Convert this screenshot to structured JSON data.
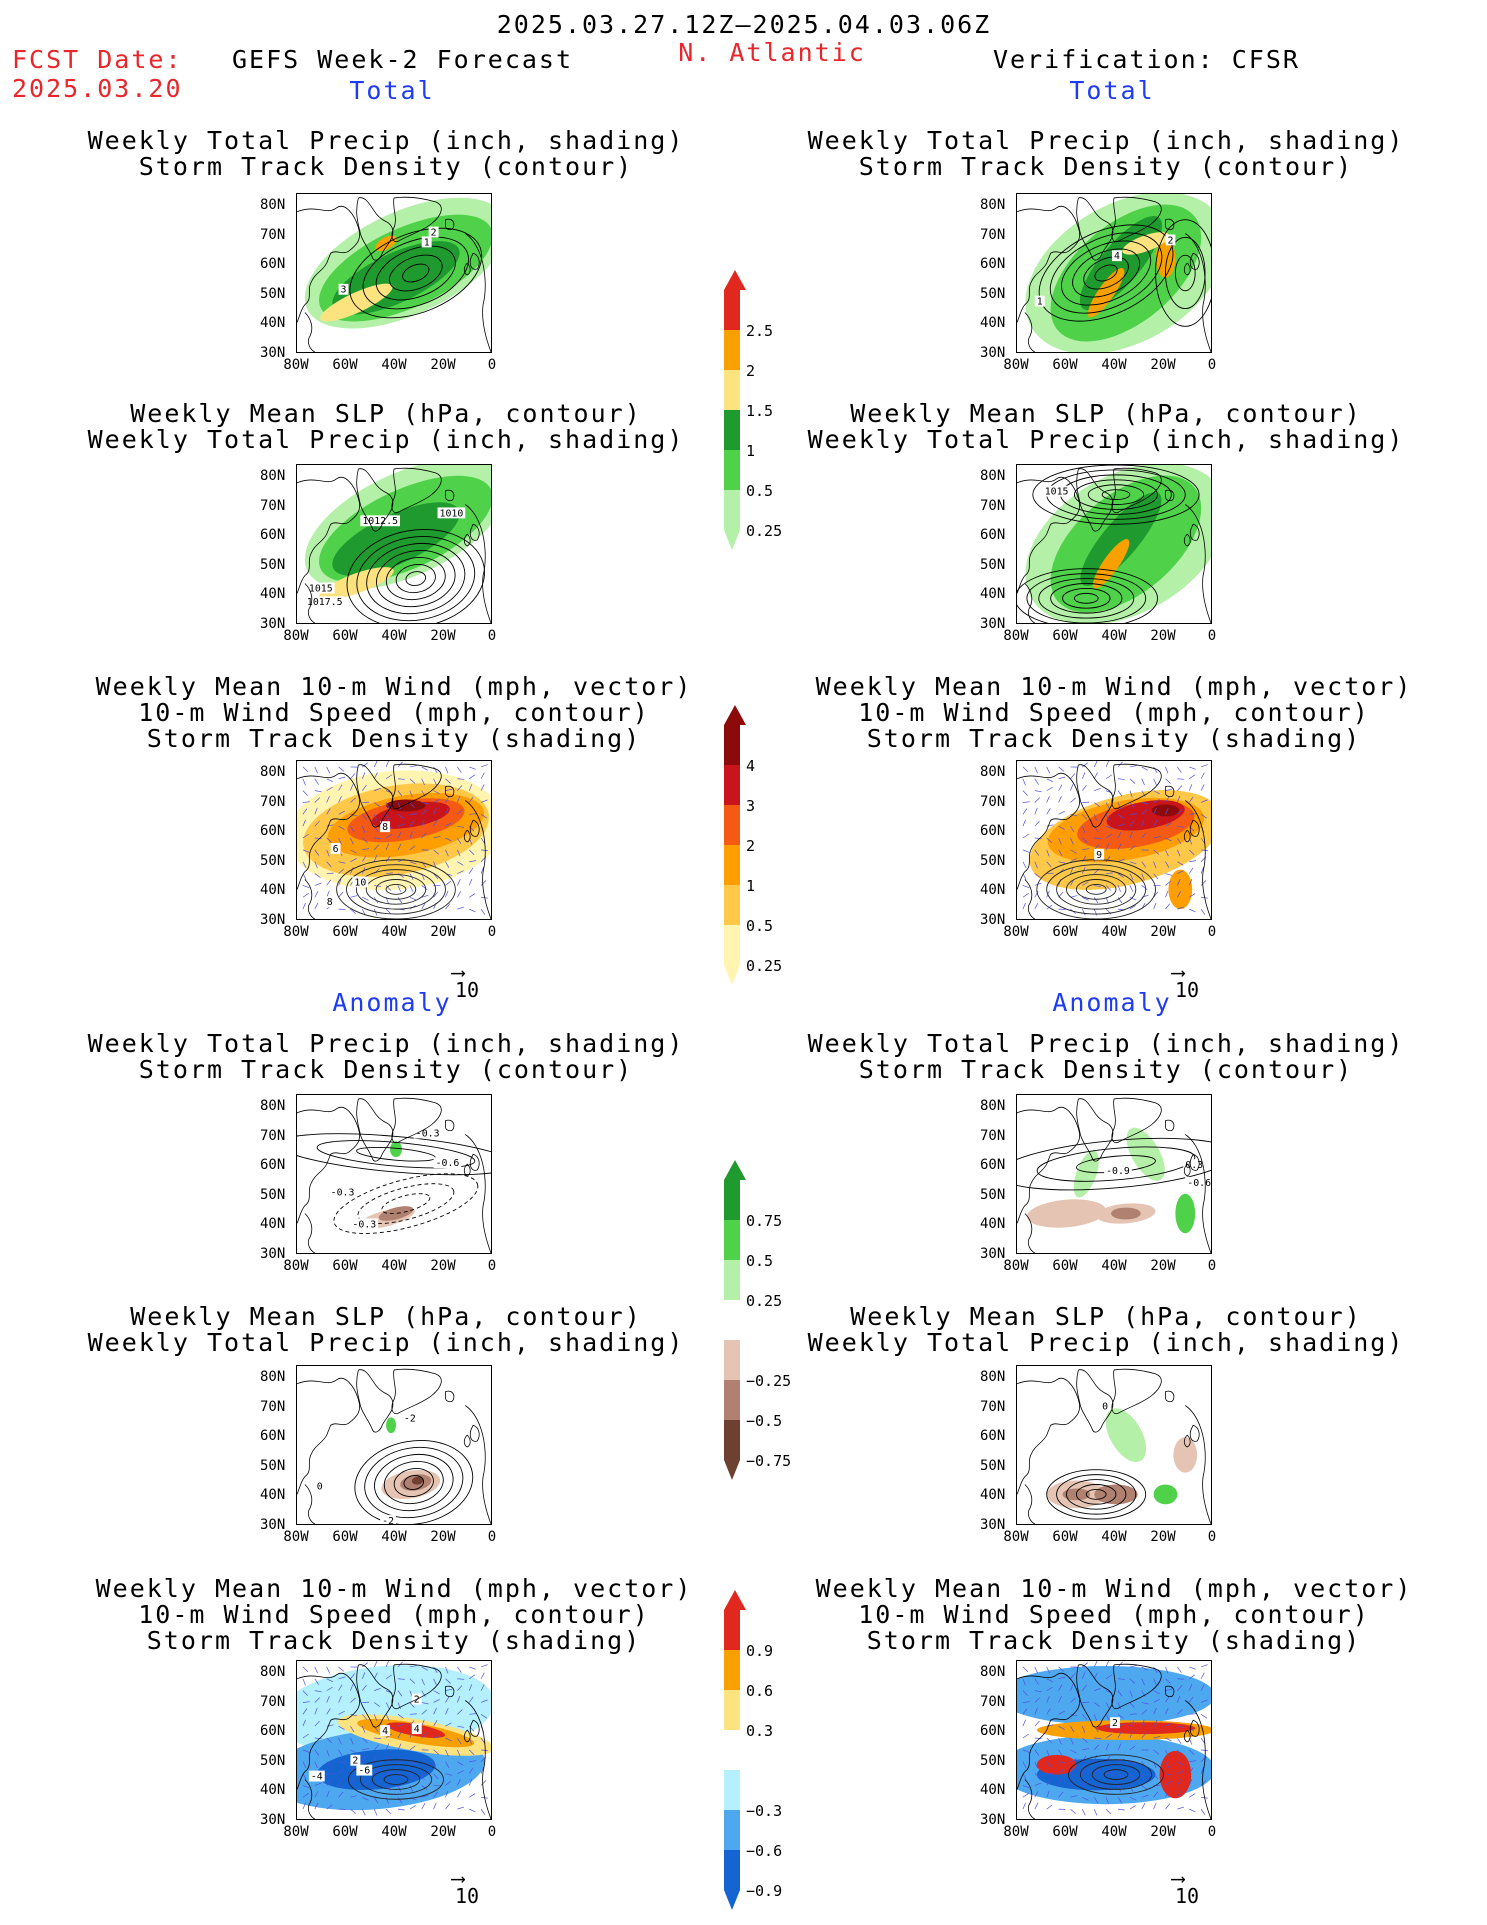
{
  "header": {
    "period": "2025.03.27.12Z–2025.04.03.06Z",
    "fcst_label": "FCST Date:",
    "fcst_date": "2025.03.20",
    "model_title": "GEFS Week-2 Forecast",
    "region": "N. Atlantic",
    "verification": "Verification: CFSR"
  },
  "sections": {
    "total": "Total",
    "anomaly": "Anomaly"
  },
  "panel_titles": {
    "precip_track": "Weekly Total Precip (inch, shading)\nStorm Track Density (contour)",
    "slp_precip": "Weekly Mean SLP (hPa, contour)\nWeekly Total Precip (inch, shading)",
    "wind_track": "Weekly Mean 10-m Wind (mph, vector)\n10-m Wind Speed (mph, contour)\nStorm Track Density (shading)"
  },
  "axes": {
    "lat_ticks": [
      "80N",
      "70N",
      "60N",
      "50N",
      "40N",
      "30N"
    ],
    "lon_ticks": [
      "80W",
      "60W",
      "40W",
      "20W",
      "0"
    ]
  },
  "vector_ref": "10",
  "colorbars": {
    "precip_total": {
      "labels": [
        "2.5",
        "2",
        "1.5",
        "1",
        "0.5",
        "0.25"
      ],
      "colors": [
        "#e0281e",
        "#f8a000",
        "#fde380",
        "#1e9a2e",
        "#4fd24a",
        "#b4f0a8"
      ]
    },
    "track_total": {
      "labels": [
        "4",
        "3",
        "2",
        "1",
        "0.5",
        "0.25"
      ],
      "colors": [
        "#8c0a0a",
        "#c8141a",
        "#f55a14",
        "#ff9e00",
        "#ffc848",
        "#fff5b0"
      ]
    },
    "precip_anom": {
      "labels": [
        "0.75",
        "0.5",
        "0.25",
        "−0.25",
        "−0.5",
        "−0.75"
      ],
      "colors": [
        "#1e9a2e",
        "#4fd24a",
        "#b4f0a8",
        "#ffffff",
        "#e6c4b4",
        "#b08070",
        "#6e4032"
      ]
    },
    "track_anom": {
      "labels": [
        "0.9",
        "0.6",
        "0.3",
        "−0.3",
        "−0.6",
        "−0.9"
      ],
      "colors": [
        "#e0281e",
        "#f8a000",
        "#fde380",
        "#ffffff",
        "#b4f0ff",
        "#4ea8f0",
        "#1464d2"
      ]
    }
  },
  "contour_labels": {
    "f_pt": [
      "2",
      "1",
      "3"
    ],
    "f_slp": [
      "1012.5",
      "1010",
      "1015",
      "1017.5"
    ],
    "f_wind": [
      "8",
      "6",
      "10",
      "8"
    ],
    "v_pt": [
      "4",
      "2",
      "1"
    ],
    "v_slp": [
      "1015"
    ],
    "v_wind": [
      "9"
    ],
    "fa_pt": [
      "-0.3",
      "-0.6",
      "-0.3",
      "-0.3"
    ],
    "fa_slp": [
      "-2",
      "0",
      "-2"
    ],
    "fa_wind": [
      "2",
      "4",
      "4",
      "2",
      "-6",
      "-4"
    ],
    "va_pt": [
      "-0.9",
      "0.3",
      "-0.6"
    ],
    "va_slp": [
      "0"
    ],
    "va_wind": [
      "2"
    ]
  }
}
